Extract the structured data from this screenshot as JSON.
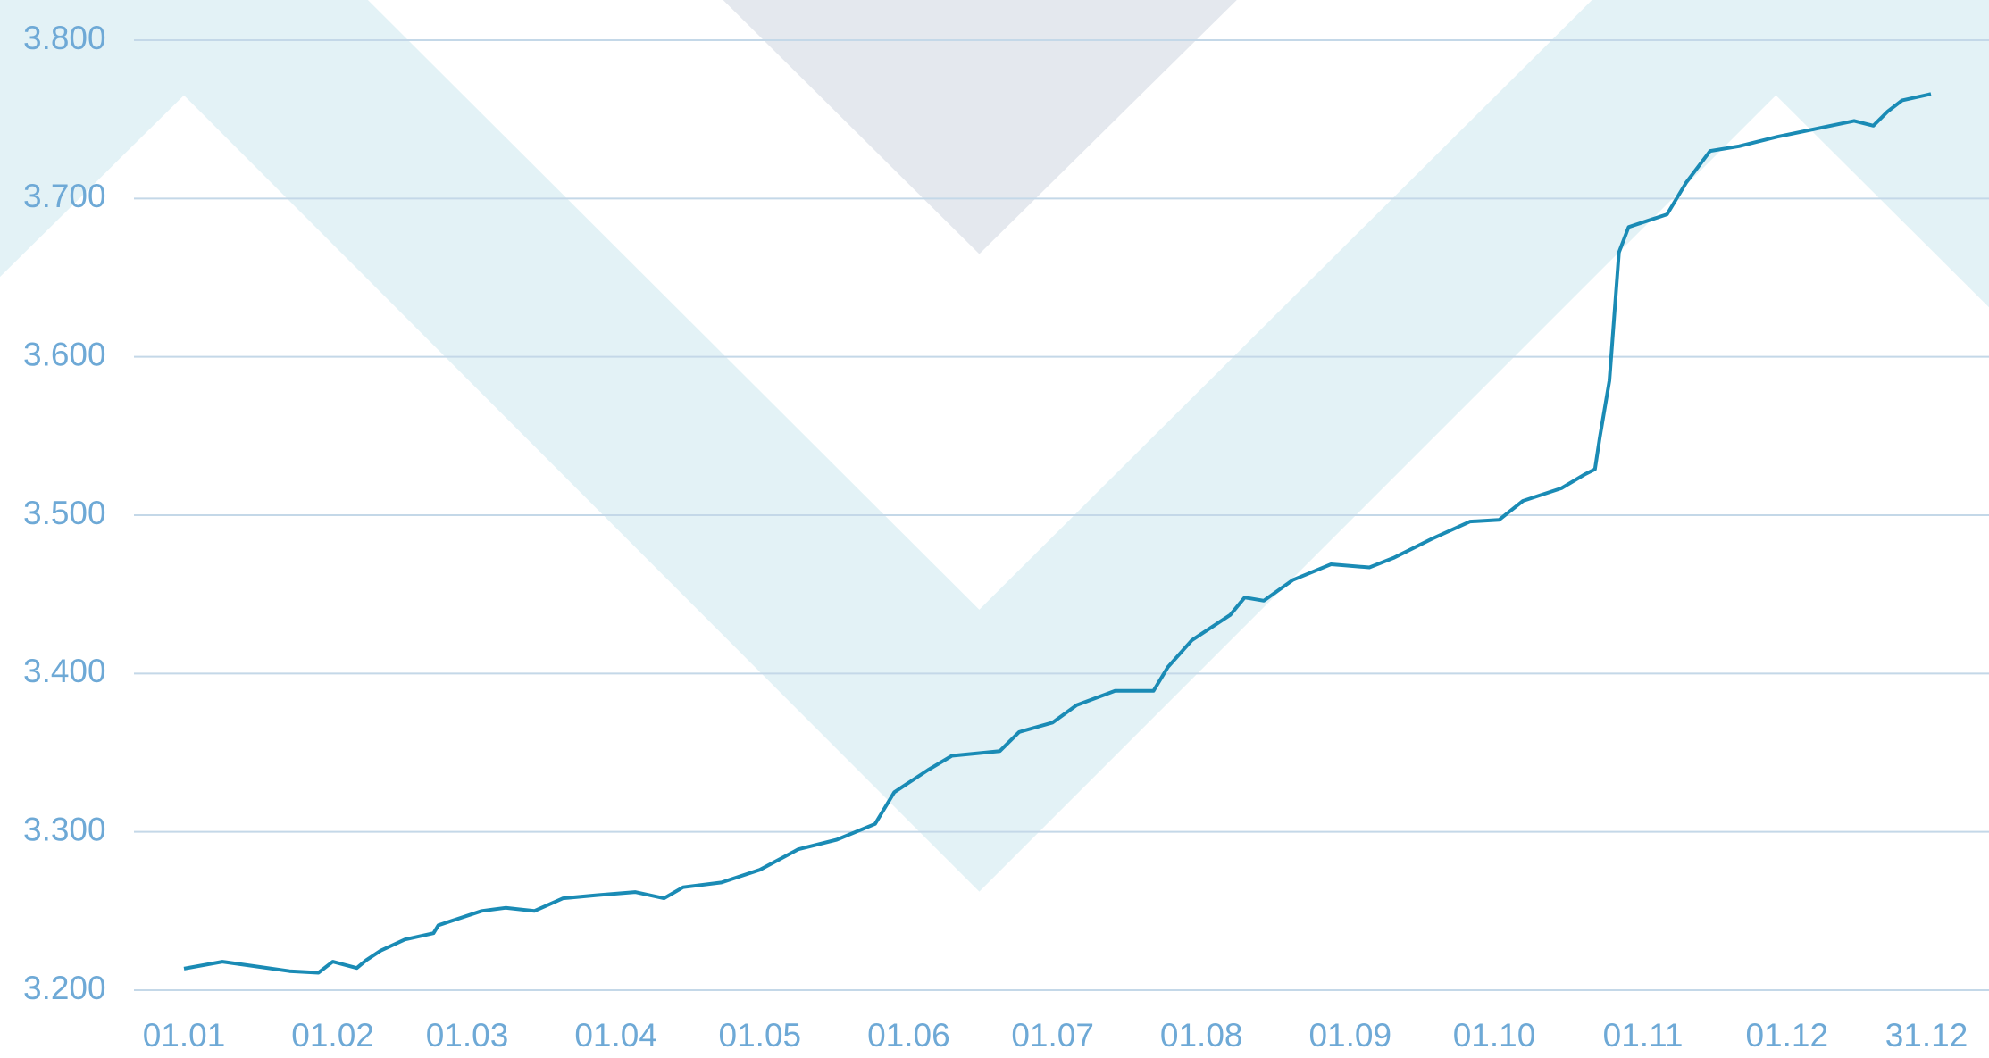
{
  "chart_data": {
    "type": "line",
    "x": [
      0,
      8,
      15,
      22,
      28,
      31,
      36,
      38,
      41,
      46,
      52,
      53,
      62,
      67,
      73,
      79,
      86,
      94,
      100,
      104,
      112,
      120,
      128,
      136,
      144,
      148,
      155,
      160,
      170,
      174,
      181,
      186,
      194,
      202,
      205,
      210,
      218,
      221,
      225,
      231,
      239,
      247,
      252,
      260,
      268,
      274,
      279,
      287,
      292,
      294,
      295,
      297,
      298,
      299,
      301,
      305,
      309,
      313,
      318,
      324,
      332,
      340,
      348,
      352,
      355,
      358,
      364
    ],
    "series": [
      {
        "color": "#1a8bb5",
        "values": [
          3.2136,
          3.218,
          3.215,
          3.212,
          3.211,
          3.218,
          3.214,
          3.219,
          3.225,
          3.232,
          3.236,
          3.241,
          3.25,
          3.252,
          3.25,
          3.258,
          3.26,
          3.262,
          3.258,
          3.265,
          3.268,
          3.276,
          3.289,
          3.295,
          3.305,
          3.325,
          3.339,
          3.348,
          3.351,
          3.363,
          3.369,
          3.38,
          3.389,
          3.389,
          3.404,
          3.421,
          3.437,
          3.448,
          3.446,
          3.459,
          3.469,
          3.467,
          3.473,
          3.485,
          3.496,
          3.497,
          3.509,
          3.517,
          3.526,
          3.529,
          3.549,
          3.585,
          3.625,
          3.666,
          3.682,
          3.686,
          3.69,
          3.71,
          3.73,
          3.733,
          3.739,
          3.744,
          3.749,
          3.746,
          3.755,
          3.762,
          3.766
        ]
      }
    ],
    "xlim": [
      0,
      364
    ],
    "xticks": [
      {
        "value": 0,
        "label": "01.01"
      },
      {
        "value": 31,
        "label": "01.02"
      },
      {
        "value": 59,
        "label": "01.03"
      },
      {
        "value": 90,
        "label": "01.04"
      },
      {
        "value": 120,
        "label": "01.05"
      },
      {
        "value": 151,
        "label": "01.06"
      },
      {
        "value": 181,
        "label": "01.07"
      },
      {
        "value": 212,
        "label": "01.08"
      },
      {
        "value": 243,
        "label": "01.09"
      },
      {
        "value": 273,
        "label": "01.10"
      },
      {
        "value": 304,
        "label": "01.11"
      },
      {
        "value": 334,
        "label": "01.12"
      },
      {
        "value": 364,
        "label": "31.12"
      }
    ],
    "ylim": [
      3.2,
      3.8
    ],
    "yticks": [
      {
        "value": 3.2,
        "label": "3.200"
      },
      {
        "value": 3.3,
        "label": "3.300"
      },
      {
        "value": 3.4,
        "label": "3.400"
      },
      {
        "value": 3.5,
        "label": "3.500"
      },
      {
        "value": 3.6,
        "label": "3.600"
      },
      {
        "value": 3.7,
        "label": "3.700"
      },
      {
        "value": 3.8,
        "label": "3.800"
      }
    ],
    "grid": true
  }
}
